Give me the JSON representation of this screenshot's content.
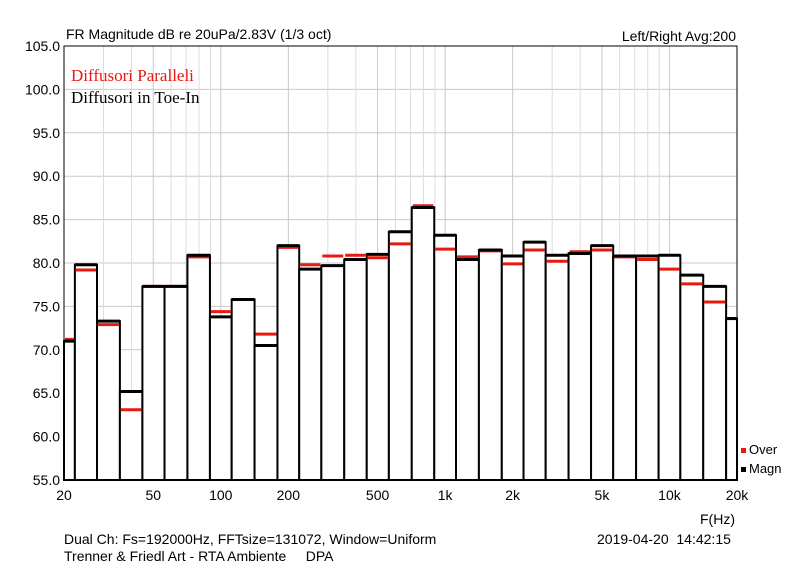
{
  "chart_data": {
    "type": "bar",
    "title": "FR Magnitude dB re 20uPa/2.83V (1/3 oct)",
    "top_right_label": "Left/Right  Avg:200",
    "xlabel": "F(Hz)",
    "x_scale": "log",
    "xlim": [
      20,
      20000
    ],
    "ylim": [
      55,
      105
    ],
    "grid": true,
    "y_ticks": [
      "55.0",
      "60.0",
      "65.0",
      "70.0",
      "75.0",
      "80.0",
      "85.0",
      "90.0",
      "95.0",
      "100.0",
      "105.0"
    ],
    "x_ticks": [
      {
        "value": 20,
        "label": "20"
      },
      {
        "value": 50,
        "label": "50"
      },
      {
        "value": 100,
        "label": "100"
      },
      {
        "value": 200,
        "label": "200"
      },
      {
        "value": 500,
        "label": "500"
      },
      {
        "value": 1000,
        "label": "1k"
      },
      {
        "value": 2000,
        "label": "2k"
      },
      {
        "value": 5000,
        "label": "5k"
      },
      {
        "value": 10000,
        "label": "10k"
      },
      {
        "value": 20000,
        "label": "20k"
      }
    ],
    "x_minor_ticks": [
      30,
      40,
      60,
      70,
      80,
      90,
      300,
      400,
      600,
      700,
      800,
      900,
      3000,
      4000,
      6000,
      7000,
      8000,
      9000
    ],
    "bands": [
      20,
      25,
      31.5,
      40,
      50,
      63,
      80,
      100,
      125,
      160,
      200,
      250,
      315,
      400,
      500,
      630,
      800,
      1000,
      1250,
      1600,
      2000,
      2500,
      3150,
      4000,
      5000,
      6300,
      8000,
      10000,
      12500,
      16000,
      20000
    ],
    "series": [
      {
        "name": "Diffusori Paralleli",
        "color": "#e8190f",
        "values": [
          71.2,
          79.2,
          72.9,
          63.1,
          77.3,
          77.3,
          80.7,
          74.4,
          75.8,
          71.8,
          81.8,
          79.8,
          80.8,
          80.9,
          80.6,
          82.2,
          86.6,
          81.6,
          80.7,
          81.4,
          79.9,
          81.5,
          80.2,
          81.3,
          81.5,
          80.7,
          80.4,
          79.3,
          77.6,
          75.5,
          73.6
        ]
      },
      {
        "name": "Diffusori in Toe-In",
        "color": "#000000",
        "values": [
          71.0,
          79.8,
          73.3,
          65.2,
          77.3,
          77.3,
          80.9,
          73.8,
          75.8,
          70.5,
          82.0,
          79.3,
          79.7,
          80.4,
          81.0,
          83.6,
          86.4,
          83.2,
          80.4,
          81.5,
          80.8,
          82.4,
          80.9,
          81.1,
          82.0,
          80.8,
          80.8,
          80.9,
          78.6,
          77.3,
          73.6
        ]
      }
    ],
    "legend": {
      "position": "bottom-right",
      "entries": [
        {
          "label": "Over",
          "color": "#e8190f"
        },
        {
          "label": "Magn",
          "color": "#000000"
        }
      ]
    }
  },
  "annotations": {
    "series1_label": "Diffusori Paralleli",
    "series2_label": "Diffusori in Toe-In"
  },
  "footer": {
    "line1": "Dual Ch: Fs=192000Hz, FFTsize=131072, Window=Uniform",
    "line2": "Trenner & Friedl Art - RTA Ambiente     DPA",
    "datetime": "2019-04-20  14:42:15"
  }
}
